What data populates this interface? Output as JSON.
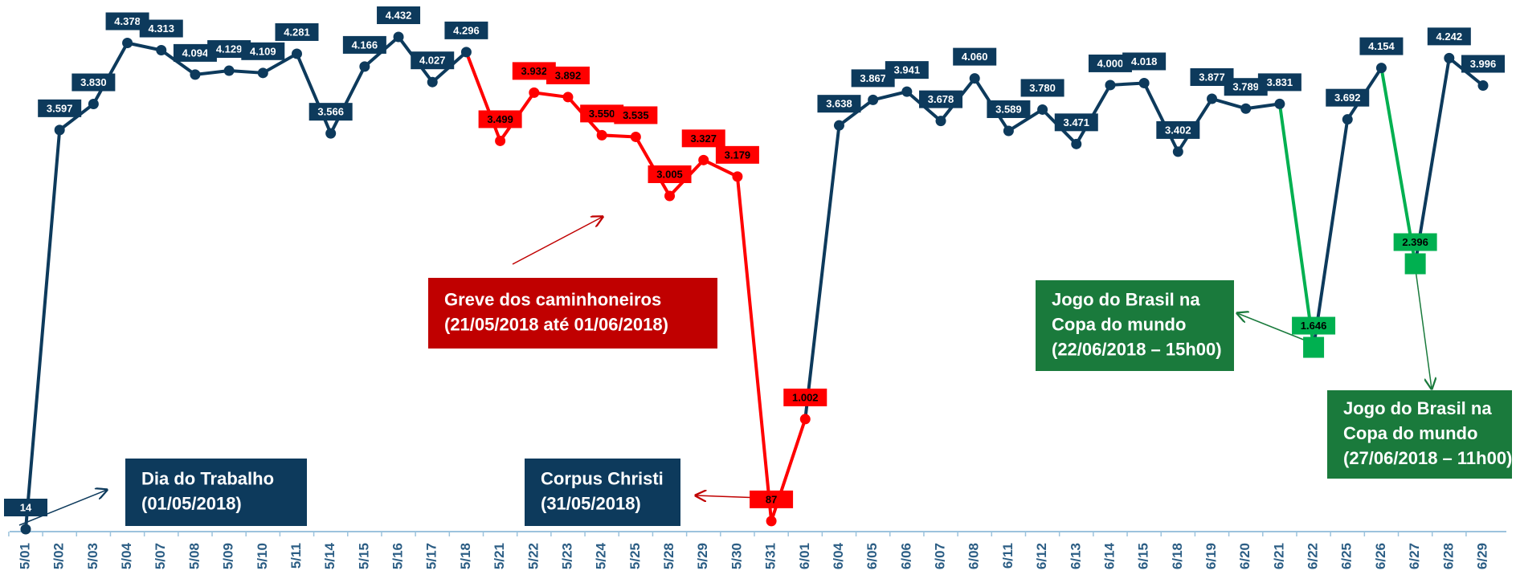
{
  "chart_data": {
    "type": "line",
    "categories": [
      "5/01",
      "5/02",
      "5/03",
      "5/04",
      "5/07",
      "5/08",
      "5/09",
      "5/10",
      "5/11",
      "5/14",
      "5/15",
      "5/16",
      "5/17",
      "5/18",
      "5/21",
      "5/22",
      "5/23",
      "5/24",
      "5/25",
      "5/28",
      "5/29",
      "5/30",
      "5/31",
      "6/01",
      "6/04",
      "6/05",
      "6/06",
      "6/07",
      "6/08",
      "6/11",
      "6/12",
      "6/13",
      "6/14",
      "6/15",
      "6/18",
      "6/19",
      "6/20",
      "6/21",
      "6/22",
      "6/25",
      "6/26",
      "6/27",
      "6/28",
      "6/29"
    ],
    "series": [
      {
        "values": [
          14,
          3597,
          3830,
          4378,
          4313,
          4094,
          4129,
          4109,
          4281,
          3566,
          4166,
          4432,
          4027,
          4296,
          3499,
          3932,
          3892,
          3550,
          3535,
          3005,
          3327,
          3179,
          87,
          1002,
          3638,
          3867,
          3941,
          3678,
          4060,
          3589,
          3780,
          3471,
          4000,
          4018,
          3402,
          3877,
          3789,
          3831,
          1646,
          3692,
          4154,
          2396,
          4242,
          3996
        ],
        "value_labels": [
          "14",
          "3.597",
          "3.830",
          "4.378",
          "4.313",
          "4.094",
          "4.129",
          "4.109",
          "4.281",
          "3.566",
          "4.166",
          "4.432",
          "4.027",
          "4.296",
          "3.499",
          "3.932",
          "3.892",
          "3.550",
          "3.535",
          "3.005",
          "3.327",
          "3.179",
          "87",
          "1.002",
          "3.638",
          "3.867",
          "3.941",
          "3.678",
          "4.060",
          "3.589",
          "3.780",
          "3.471",
          "4.000",
          "4.018",
          "3.402",
          "3.877",
          "3.789",
          "3.831",
          "1.646",
          "3.692",
          "4.154",
          "2.396",
          "4.242",
          "3.996"
        ],
        "colors": [
          "#0d3a5c",
          "#0d3a5c",
          "#0d3a5c",
          "#0d3a5c",
          "#0d3a5c",
          "#0d3a5c",
          "#0d3a5c",
          "#0d3a5c",
          "#0d3a5c",
          "#0d3a5c",
          "#0d3a5c",
          "#0d3a5c",
          "#0d3a5c",
          "#0d3a5c",
          "#ff0000",
          "#ff0000",
          "#ff0000",
          "#ff0000",
          "#ff0000",
          "#ff0000",
          "#ff0000",
          "#ff0000",
          "#ff0000",
          "#ff0000",
          "#0d3a5c",
          "#0d3a5c",
          "#0d3a5c",
          "#0d3a5c",
          "#0d3a5c",
          "#0d3a5c",
          "#0d3a5c",
          "#0d3a5c",
          "#0d3a5c",
          "#0d3a5c",
          "#0d3a5c",
          "#0d3a5c",
          "#0d3a5c",
          "#0d3a5c",
          "#00b050",
          "#0d3a5c",
          "#0d3a5c",
          "#00b050",
          "#0d3a5c",
          "#0d3a5c"
        ]
      }
    ],
    "annotations": [
      {
        "lines": [
          "Dia do Trabalho",
          "(01/05/2018)"
        ]
      },
      {
        "lines": [
          "Corpus Christi",
          "(31/05/2018)"
        ]
      },
      {
        "lines": [
          "Greve dos caminhoneiros",
          "(21/05/2018 até 01/06/2018)"
        ]
      },
      {
        "lines": [
          "Jogo do Brasil na",
          "Copa do mundo",
          "(22/06/2018 – 15h00)"
        ]
      },
      {
        "lines": [
          "Jogo do Brasil na",
          "Copa do mundo",
          "(27/06/2018 – 11h00)"
        ]
      }
    ]
  }
}
